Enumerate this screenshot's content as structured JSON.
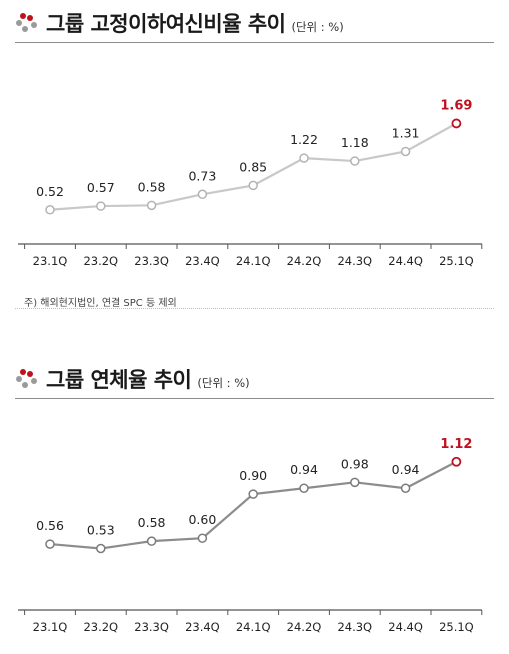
{
  "colors": {
    "accent": "#c0111f",
    "line1": "#c8c8c8",
    "line2": "#8c8c8c",
    "marker_fill": "#ffffff"
  },
  "logo_icon": "red-grey-dots-logo-icon",
  "sections": [
    {
      "title": "그룹 고정이하여신비율 추이",
      "unit": "(단위 : %)",
      "note": "주) 해외현지법인, 연결 SPC 등 제외"
    },
    {
      "title": "그룹 연체율 추이",
      "unit": "(단위 : %)"
    }
  ],
  "chart_data": [
    {
      "type": "line",
      "title": "그룹 고정이하여신비율 추이",
      "categories": [
        "23.1Q",
        "23.2Q",
        "23.3Q",
        "23.4Q",
        "24.1Q",
        "24.2Q",
        "24.3Q",
        "24.4Q",
        "25.1Q"
      ],
      "values": [
        0.52,
        0.57,
        0.58,
        0.73,
        0.85,
        1.22,
        1.18,
        1.31,
        1.69
      ],
      "labels": [
        "0.52",
        "0.57",
        "0.58",
        "0.73",
        "0.85",
        "1.22",
        "1.18",
        "1.31",
        "1.69"
      ],
      "ylim": [
        0.3,
        1.75
      ],
      "grid": false
    },
    {
      "type": "line",
      "title": "그룹 연체율 추이",
      "categories": [
        "23.1Q",
        "23.2Q",
        "23.3Q",
        "23.4Q",
        "24.1Q",
        "24.2Q",
        "24.3Q",
        "24.4Q",
        "25.1Q"
      ],
      "values": [
        0.56,
        0.53,
        0.58,
        0.6,
        0.9,
        0.94,
        0.98,
        0.94,
        1.12
      ],
      "labels": [
        "0.56",
        "0.53",
        "0.58",
        "0.60",
        "0.90",
        "0.94",
        "0.98",
        "0.94",
        "1.12"
      ],
      "ylim": [
        0.2,
        1.2
      ],
      "grid": false
    }
  ]
}
